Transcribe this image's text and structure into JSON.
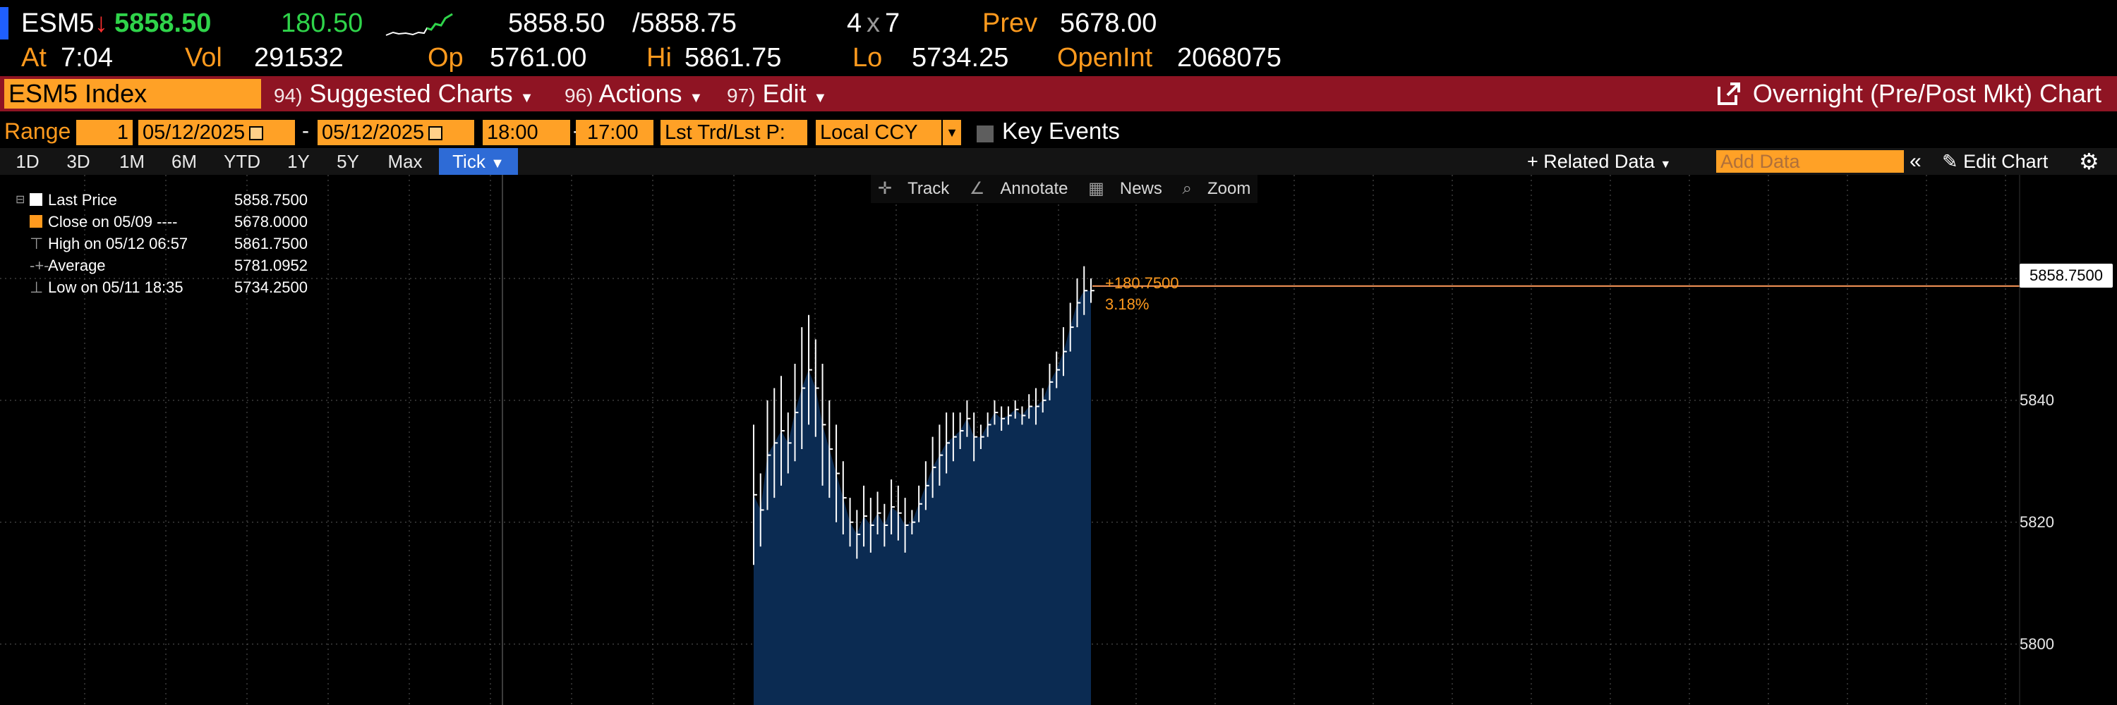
{
  "quote": {
    "ticker": "ESM5",
    "last": "5858.50",
    "change": "180.50",
    "bid_ask": "5858.50",
    "ask": "/5858.75",
    "size_bid": "4",
    "size_x": "x",
    "size_ask": "7",
    "prev_label": "Prev",
    "prev_value": "5678.00",
    "at_label": "At",
    "at_value": "7:04",
    "vol_label": "Vol",
    "vol_value": "291532",
    "op_label": "Op",
    "op_value": "5761.00",
    "hi_label": "Hi",
    "hi_value": "5861.75",
    "lo_label": "Lo",
    "lo_value": "5734.25",
    "oi_label": "OpenInt",
    "oi_value": "2068075",
    "colors": {
      "up": "#2fd44a",
      "down": "#ff3030",
      "label": "#ff9a1e"
    }
  },
  "command_bar": {
    "security": "ESM5 Index",
    "menus": [
      {
        "num": "94)",
        "label": "Suggested Charts"
      },
      {
        "num": "96)",
        "label": "Actions"
      },
      {
        "num": "97)",
        "label": "Edit"
      }
    ],
    "right_title": "Overnight (Pre/Post Mkt) Chart",
    "right_icon": "external-link-icon"
  },
  "range_bar": {
    "range_label": "Range",
    "range_num": "1",
    "start_date": "05/12/2025",
    "end_date": "05/12/2025",
    "start_time": "18:00",
    "end_time": "17:00",
    "price_type": "Lst Trd/Lst P:",
    "currency": "Local CCY",
    "key_events": "Key Events"
  },
  "period_tabs": {
    "items": [
      "1D",
      "3D",
      "1M",
      "6M",
      "YTD",
      "1Y",
      "5Y",
      "Max"
    ],
    "active": "Tick",
    "related_data": "+ Related Data",
    "add_data_placeholder": "Add Data",
    "edit_chart": "Edit Chart"
  },
  "chart_tools": {
    "track": "Track",
    "annotate": "Annotate",
    "news": "News",
    "zoom": "Zoom"
  },
  "legend": [
    {
      "label": "Last Price",
      "value": "5858.7500",
      "marker": "white-square"
    },
    {
      "label": "Close on 05/09 ----",
      "value": "5678.0000",
      "marker": "orange-square"
    },
    {
      "label": "High on 05/12 06:57",
      "value": "5861.7500",
      "marker": "high-icon"
    },
    {
      "label": "Average",
      "value": "5781.0952",
      "marker": "average-icon"
    },
    {
      "label": "Low on 05/11 18:35",
      "value": "5734.2500",
      "marker": "low-icon"
    }
  ],
  "chart_data": {
    "type": "bar",
    "title": "",
    "xlabel": "",
    "ylabel": "",
    "ylim": [
      5790,
      5877
    ],
    "yticks": [
      5800,
      5820,
      5840
    ],
    "grid": true,
    "last_price_label": "5858.7500",
    "change_abs": "+180.7500",
    "change_pct": "3.18%",
    "series": [
      {
        "values": [
          [
            5813,
            5836
          ],
          [
            5816,
            5828
          ],
          [
            5822,
            5840
          ],
          [
            5824,
            5842
          ],
          [
            5826,
            5844
          ],
          [
            5828,
            5838
          ],
          [
            5830,
            5846
          ],
          [
            5832,
            5852
          ],
          [
            5836,
            5854
          ],
          [
            5834,
            5850
          ],
          [
            5826,
            5846
          ],
          [
            5824,
            5840
          ],
          [
            5820,
            5836
          ],
          [
            5818,
            5830
          ],
          [
            5816,
            5824
          ],
          [
            5814,
            5822
          ],
          [
            5816,
            5826
          ],
          [
            5815,
            5824
          ],
          [
            5818,
            5825
          ],
          [
            5816,
            5823
          ],
          [
            5818,
            5827
          ],
          [
            5817,
            5826
          ],
          [
            5815,
            5824
          ],
          [
            5818,
            5822
          ],
          [
            5820,
            5826
          ],
          [
            5822,
            5830
          ],
          [
            5824,
            5834
          ],
          [
            5826,
            5836
          ],
          [
            5828,
            5838
          ],
          [
            5830,
            5838
          ],
          [
            5832,
            5838
          ],
          [
            5834,
            5840
          ],
          [
            5830,
            5838
          ],
          [
            5832,
            5836
          ],
          [
            5834,
            5838
          ],
          [
            5836,
            5840
          ],
          [
            5835,
            5839
          ],
          [
            5836,
            5839
          ],
          [
            5837,
            5840
          ],
          [
            5836,
            5839
          ],
          [
            5837,
            5841
          ],
          [
            5836,
            5842
          ],
          [
            5838,
            5842
          ],
          [
            5840,
            5846
          ],
          [
            5842,
            5848
          ],
          [
            5844,
            5852
          ],
          [
            5848,
            5856
          ],
          [
            5852,
            5860
          ],
          [
            5854,
            5862
          ],
          [
            5856,
            5860
          ]
        ]
      }
    ]
  }
}
